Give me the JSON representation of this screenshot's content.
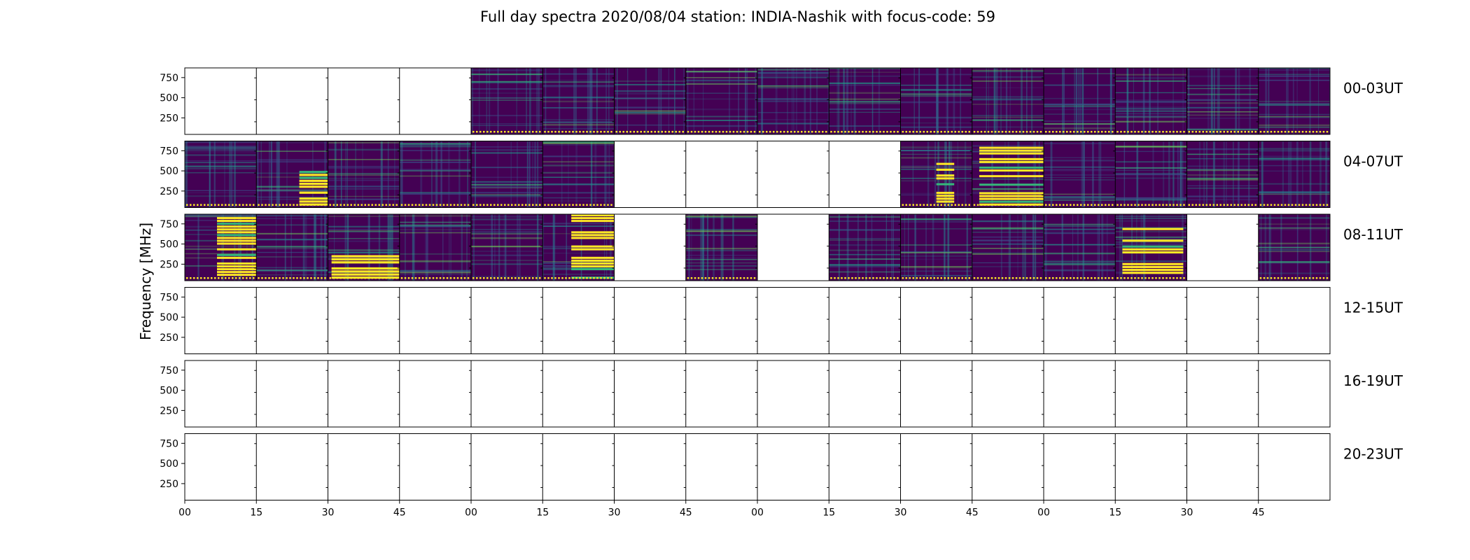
{
  "chart_data": {
    "type": "heatmap",
    "title": "Full day spectra 2020/08/04 station: INDIA-Nashik with focus-code: 59",
    "ylabel": "Frequency [MHz]",
    "xlabel": "",
    "ylim": [
      45,
      870
    ],
    "yticks": [
      "250",
      "500",
      "750"
    ],
    "ytick_values": [
      250,
      500,
      750
    ],
    "xticks": [
      "00",
      "15",
      "30",
      "45",
      "00",
      "15",
      "30",
      "45",
      "00",
      "15",
      "30",
      "45",
      "00",
      "15",
      "30",
      "45"
    ],
    "colormap": {
      "low": "#440154",
      "mid": "#21918c",
      "high": "#fde725"
    },
    "grid": false,
    "rows": [
      {
        "label": "00-03UT",
        "panels": [
          0,
          0,
          0,
          0,
          1,
          1,
          1,
          1,
          1,
          1,
          1,
          1,
          1,
          1,
          1,
          1
        ],
        "bursts": []
      },
      {
        "label": "04-07UT",
        "panels": [
          1,
          1,
          1,
          1,
          1,
          1,
          0,
          0,
          0,
          0,
          1,
          1,
          1,
          1,
          1,
          1
        ],
        "bursts": [
          {
            "panel": 1,
            "f_from": 0.6,
            "f_to": 1.0,
            "fmin": 60,
            "fmax": 500
          },
          {
            "panel": 10,
            "f_from": 0.5,
            "f_to": 0.75,
            "fmin": 60,
            "fmax": 600
          },
          {
            "panel": 11,
            "f_from": 0.1,
            "f_to": 1.0,
            "fmin": 60,
            "fmax": 870
          }
        ]
      },
      {
        "label": "08-11UT",
        "panels": [
          1,
          1,
          1,
          1,
          1,
          1,
          0,
          1,
          0,
          1,
          1,
          1,
          1,
          1,
          0,
          1
        ],
        "bursts": [
          {
            "panel": 0,
            "f_from": 0.45,
            "f_to": 1.0,
            "fmin": 60,
            "fmax": 870
          },
          {
            "panel": 2,
            "f_from": 0.05,
            "f_to": 1.0,
            "fmin": 60,
            "fmax": 400
          },
          {
            "panel": 5,
            "f_from": 0.4,
            "f_to": 1.0,
            "fmin": 60,
            "fmax": 870
          },
          {
            "panel": 13,
            "f_from": 0.1,
            "f_to": 0.95,
            "fmin": 120,
            "fmax": 700
          }
        ]
      },
      {
        "label": "12-15UT",
        "panels": [
          0,
          0,
          0,
          0,
          0,
          0,
          0,
          0,
          0,
          0,
          0,
          0,
          0,
          0,
          0,
          0
        ],
        "bursts": []
      },
      {
        "label": "16-19UT",
        "panels": [
          0,
          0,
          0,
          0,
          0,
          0,
          0,
          0,
          0,
          0,
          0,
          0,
          0,
          0,
          0,
          0
        ],
        "bursts": []
      },
      {
        "label": "20-23UT",
        "panels": [
          0,
          0,
          0,
          0,
          0,
          0,
          0,
          0,
          0,
          0,
          0,
          0,
          0,
          0,
          0,
          0
        ],
        "bursts": []
      }
    ]
  }
}
